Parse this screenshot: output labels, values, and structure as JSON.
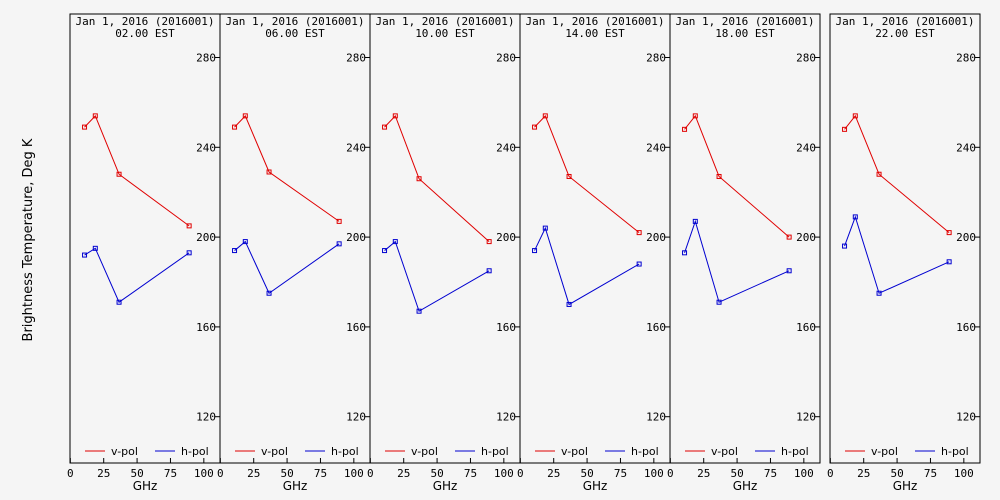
{
  "chart_data": {
    "type": "line",
    "ylabel": "Brightness Temperature, Deg K",
    "xlabel": "GHz",
    "xlim": [
      0,
      100
    ],
    "ylim": [
      100,
      295
    ],
    "xticks": [
      0,
      25,
      50,
      75,
      100
    ],
    "yticks": [
      120,
      160,
      200,
      240,
      280
    ],
    "x": [
      10.65,
      18.7,
      36.5,
      89.0
    ],
    "legend": [
      "v-pol",
      "h-pol"
    ],
    "colors": {
      "v-pol": "#e00000",
      "h-pol": "#0000d0"
    },
    "panels": [
      {
        "title": "Jan  1, 2016 (2016001)",
        "subtitle": "02.00 EST",
        "series": [
          {
            "name": "v-pol",
            "values": [
              249,
              254,
              228,
              205
            ]
          },
          {
            "name": "h-pol",
            "values": [
              192,
              195,
              171,
              193
            ]
          }
        ]
      },
      {
        "title": "Jan  1, 2016 (2016001)",
        "subtitle": "06.00 EST",
        "series": [
          {
            "name": "v-pol",
            "values": [
              249,
              254,
              229,
              207
            ]
          },
          {
            "name": "h-pol",
            "values": [
              194,
              198,
              175,
              197
            ]
          }
        ]
      },
      {
        "title": "Jan  1, 2016 (2016001)",
        "subtitle": "10.00 EST",
        "series": [
          {
            "name": "v-pol",
            "values": [
              249,
              254,
              226,
              198
            ]
          },
          {
            "name": "h-pol",
            "values": [
              194,
              198,
              167,
              185
            ]
          }
        ]
      },
      {
        "title": "Jan  1, 2016 (2016001)",
        "subtitle": "14.00 EST",
        "series": [
          {
            "name": "v-pol",
            "values": [
              249,
              254,
              227,
              202
            ]
          },
          {
            "name": "h-pol",
            "values": [
              194,
              204,
              170,
              188
            ]
          }
        ]
      },
      {
        "title": "Jan  1, 2016 (2016001)",
        "subtitle": "18.00 EST",
        "series": [
          {
            "name": "v-pol",
            "values": [
              248,
              254,
              227,
              200
            ]
          },
          {
            "name": "h-pol",
            "values": [
              193,
              207,
              171,
              185
            ]
          }
        ]
      },
      {
        "title": "Jan  1, 2016 (2016001)",
        "subtitle": "22.00 EST",
        "series": [
          {
            "name": "v-pol",
            "values": [
              248,
              254,
              228,
              202
            ]
          },
          {
            "name": "h-pol",
            "values": [
              196,
              209,
              175,
              189
            ]
          }
        ]
      }
    ]
  }
}
